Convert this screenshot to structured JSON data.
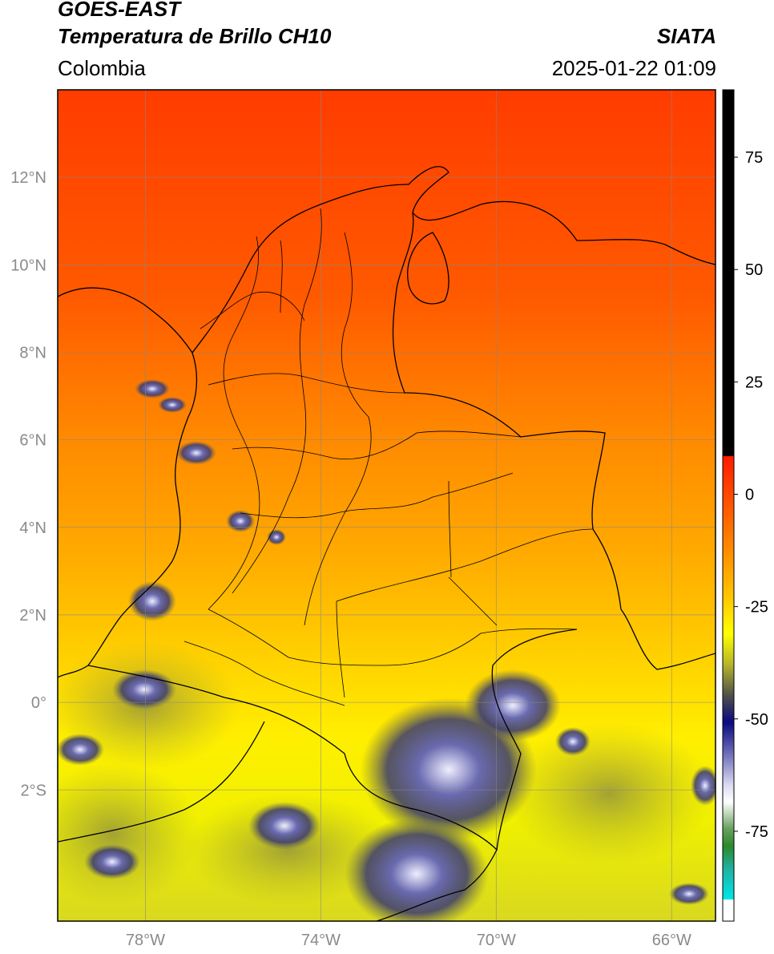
{
  "header": {
    "satellite": "GOES-EAST",
    "product": "Temperatura de Brillo CH10",
    "region": "Colombia",
    "agency": "SIATA",
    "datetime": "2025-01-22 01:09"
  },
  "map": {
    "lon_range": [
      -80,
      -65
    ],
    "lat_range": [
      -5,
      14
    ],
    "lon_ticks": [
      {
        "value": -78,
        "label": "78°W"
      },
      {
        "value": -74,
        "label": "74°W"
      },
      {
        "value": -70,
        "label": "70°W"
      },
      {
        "value": -66,
        "label": "66°W"
      }
    ],
    "lat_ticks": [
      {
        "value": 12,
        "label": "12°N"
      },
      {
        "value": 10,
        "label": "10°N"
      },
      {
        "value": 8,
        "label": "8°N"
      },
      {
        "value": 6,
        "label": "6°N"
      },
      {
        "value": 4,
        "label": "4°N"
      },
      {
        "value": 2,
        "label": "2°N"
      },
      {
        "value": 0,
        "label": "0°"
      },
      {
        "value": -2,
        "label": "2°S"
      }
    ],
    "grid": true
  },
  "colorbar": {
    "range": [
      -95,
      90
    ],
    "ticks": [
      {
        "value": 75,
        "label": "75"
      },
      {
        "value": 50,
        "label": "50"
      },
      {
        "value": 25,
        "label": "25"
      },
      {
        "value": 0,
        "label": "0"
      },
      {
        "value": -25,
        "label": "-25"
      },
      {
        "value": -50,
        "label": "-50"
      },
      {
        "value": -75,
        "label": "-75"
      }
    ],
    "colors": {
      "black": "#000000",
      "red": "#ff2a00",
      "orange": "#ff8c00",
      "yellow": "#ffff00",
      "olive": "#8f8f30",
      "navy": "#0a0a80",
      "lavender": "#c8c8ee",
      "white": "#ffffff",
      "green": "#2a8a2a",
      "teal": "#20b0a0",
      "cyan": "#00e0e0"
    }
  }
}
